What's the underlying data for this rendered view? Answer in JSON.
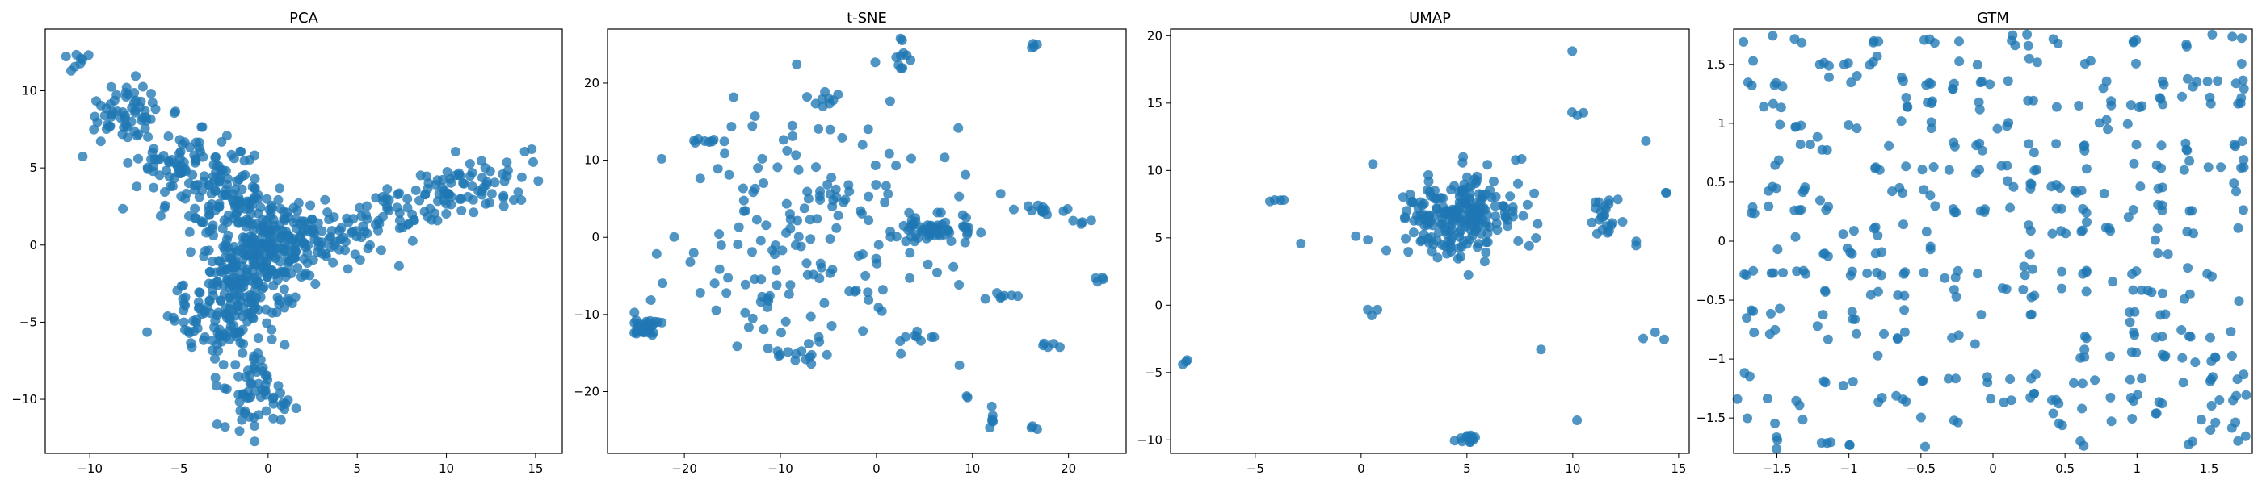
{
  "figure": {
    "background": "#ffffff",
    "marker_color": "#1f77b4"
  },
  "chart_data": [
    {
      "type": "scatter",
      "title": "PCA",
      "xlim": [
        -12.5,
        16.5
      ],
      "ylim": [
        -13.5,
        14
      ],
      "xticks": [
        -10,
        -5,
        0,
        5,
        10,
        15
      ],
      "yticks": [
        -10,
        -5,
        0,
        5,
        10
      ],
      "grid": false,
      "clusters": [
        {
          "cx": -11,
          "cy": 12,
          "sx": 0.5,
          "sy": 0.5,
          "n": 8
        },
        {
          "cx": -8,
          "cy": 8.5,
          "sx": 1.2,
          "sy": 1.0,
          "n": 60
        },
        {
          "cx": -4.5,
          "cy": 5,
          "sx": 1.4,
          "sy": 1.3,
          "n": 90
        },
        {
          "cx": -2,
          "cy": 3,
          "sx": 1.2,
          "sy": 1.2,
          "n": 80
        },
        {
          "cx": 0,
          "cy": 0,
          "sx": 1.4,
          "sy": 1.3,
          "n": 150
        },
        {
          "cx": -1.5,
          "cy": -2.5,
          "sx": 1.5,
          "sy": 1.8,
          "n": 160
        },
        {
          "cx": -3,
          "cy": -5,
          "sx": 1.5,
          "sy": 1.2,
          "n": 60
        },
        {
          "cx": 3,
          "cy": 0.5,
          "sx": 1.5,
          "sy": 1.0,
          "n": 70
        },
        {
          "cx": 7,
          "cy": 2,
          "sx": 1.3,
          "sy": 1.0,
          "n": 40
        },
        {
          "cx": 10.5,
          "cy": 3.5,
          "sx": 1.4,
          "sy": 1.0,
          "n": 55
        },
        {
          "cx": 13.5,
          "cy": 4.5,
          "sx": 1.0,
          "sy": 1.0,
          "n": 25
        },
        {
          "cx": -1,
          "cy": -9.5,
          "sx": 0.8,
          "sy": 1.3,
          "n": 60
        },
        {
          "cx": 1.2,
          "cy": -10.5,
          "sx": 0.4,
          "sy": 0.6,
          "n": 6
        }
      ]
    },
    {
      "type": "scatter",
      "title": "t-SNE",
      "xlim": [
        -28,
        26
      ],
      "ylim": [
        -28,
        27
      ],
      "xticks": [
        -20,
        -10,
        0,
        10,
        20
      ],
      "yticks": [
        -20,
        -10,
        0,
        10,
        20
      ],
      "grid": false,
      "clusters": [
        {
          "cx": -24,
          "cy": -11.5,
          "sx": 1.0,
          "sy": 0.9,
          "n": 28
        },
        {
          "cx": -5,
          "cy": 0,
          "sx": 7.5,
          "sy": 8.5,
          "n": 170
        },
        {
          "cx": 6,
          "cy": 1,
          "sx": 2.0,
          "sy": 0.8,
          "n": 50
        },
        {
          "cx": 2.8,
          "cy": 23.5,
          "sx": 0.4,
          "sy": 1.0,
          "n": 10
        },
        {
          "cx": 16.5,
          "cy": 25,
          "sx": 0.2,
          "sy": 0.3,
          "n": 4
        },
        {
          "cx": -18,
          "cy": 12.5,
          "sx": 1.0,
          "sy": 0.3,
          "n": 8
        },
        {
          "cx": -5,
          "cy": 18,
          "sx": 1.0,
          "sy": 0.6,
          "n": 8
        },
        {
          "cx": 17,
          "cy": 3.5,
          "sx": 1.2,
          "sy": 0.3,
          "n": 12
        },
        {
          "cx": 21.5,
          "cy": 2,
          "sx": 0.5,
          "sy": 0.2,
          "n": 4
        },
        {
          "cx": 23.5,
          "cy": -5.2,
          "sx": 0.4,
          "sy": 0.3,
          "n": 4
        },
        {
          "cx": 18,
          "cy": -14,
          "sx": 0.5,
          "sy": 0.4,
          "n": 5
        },
        {
          "cx": 13.5,
          "cy": -7.5,
          "sx": 0.8,
          "sy": 0.3,
          "n": 6
        },
        {
          "cx": 12,
          "cy": -23.5,
          "sx": 0.2,
          "sy": 0.8,
          "n": 6
        },
        {
          "cx": 16.5,
          "cy": -25,
          "sx": 0.4,
          "sy": 0.3,
          "n": 3
        },
        {
          "cx": 9.5,
          "cy": -20.5,
          "sx": 0.2,
          "sy": 0.3,
          "n": 2
        },
        {
          "cx": 4,
          "cy": -13,
          "sx": 1.2,
          "sy": 0.5,
          "n": 6
        },
        {
          "cx": -8,
          "cy": -15,
          "sx": 1.5,
          "sy": 1.2,
          "n": 14
        },
        {
          "cx": -12,
          "cy": -8,
          "sx": 0.6,
          "sy": 0.8,
          "n": 6
        }
      ]
    },
    {
      "type": "scatter",
      "title": "UMAP",
      "xlim": [
        -9,
        15.5
      ],
      "ylim": [
        -11,
        20.5
      ],
      "xticks": [
        -5,
        0,
        5,
        10,
        15
      ],
      "yticks": [
        -10,
        -5,
        0,
        5,
        10,
        15,
        20
      ],
      "grid": false,
      "clusters": [
        {
          "cx": 4.5,
          "cy": 6.5,
          "sx": 1.3,
          "sy": 1.5,
          "n": 220
        },
        {
          "cx": 11.5,
          "cy": 6.5,
          "sx": 0.4,
          "sy": 1.0,
          "n": 22
        },
        {
          "cx": 5,
          "cy": -10,
          "sx": 0.25,
          "sy": 0.25,
          "n": 14
        },
        {
          "cx": -8.2,
          "cy": -4.2,
          "sx": 0.15,
          "sy": 0.15,
          "n": 3
        },
        {
          "cx": -3.8,
          "cy": 7.8,
          "sx": 0.3,
          "sy": 0.1,
          "n": 4
        },
        {
          "cx": -2.8,
          "cy": 4.5,
          "sx": 0.1,
          "sy": 0.1,
          "n": 1
        },
        {
          "cx": 9.8,
          "cy": 18.8,
          "sx": 0.1,
          "sy": 0.1,
          "n": 1
        },
        {
          "cx": 10.2,
          "cy": 14.2,
          "sx": 0.2,
          "sy": 0.2,
          "n": 3
        },
        {
          "cx": 13.5,
          "cy": 12.2,
          "sx": 0.1,
          "sy": 0.1,
          "n": 1
        },
        {
          "cx": 14.5,
          "cy": 8.3,
          "sx": 0.2,
          "sy": 0.1,
          "n": 2
        },
        {
          "cx": 13.6,
          "cy": -2.5,
          "sx": 0.4,
          "sy": 0.2,
          "n": 3
        },
        {
          "cx": 10.1,
          "cy": -8.7,
          "sx": 0.1,
          "sy": 0.1,
          "n": 1
        },
        {
          "cx": 8.6,
          "cy": -3.2,
          "sx": 0.1,
          "sy": 0.1,
          "n": 1
        },
        {
          "cx": 0,
          "cy": 5,
          "sx": 0.2,
          "sy": 0.3,
          "n": 2
        },
        {
          "cx": 0.5,
          "cy": -0.3,
          "sx": 0.3,
          "sy": 0.2,
          "n": 3
        },
        {
          "cx": 0.5,
          "cy": 10.5,
          "sx": 0.1,
          "sy": 0.1,
          "n": 1
        },
        {
          "cx": 7.5,
          "cy": 10.8,
          "sx": 0.2,
          "sy": 0.1,
          "n": 2
        },
        {
          "cx": 12.8,
          "cy": 4.5,
          "sx": 0.3,
          "sy": 0.2,
          "n": 2
        }
      ]
    },
    {
      "type": "scatter",
      "title": "GTM",
      "xlim": [
        -1.8,
        1.8
      ],
      "ylim": [
        -1.8,
        1.8
      ],
      "xticks": [
        -1.5,
        -1.0,
        -0.5,
        0.0,
        0.5,
        1.0,
        1.5
      ],
      "yticks": [
        -1.5,
        -1.0,
        -0.5,
        0.0,
        0.5,
        1.0,
        1.5
      ],
      "grid": false,
      "lattice": {
        "min": -1.7,
        "max": 1.7,
        "n": 20,
        "jitter": 0.03,
        "occupancy": 0.62,
        "points_per_node": 3
      }
    }
  ]
}
